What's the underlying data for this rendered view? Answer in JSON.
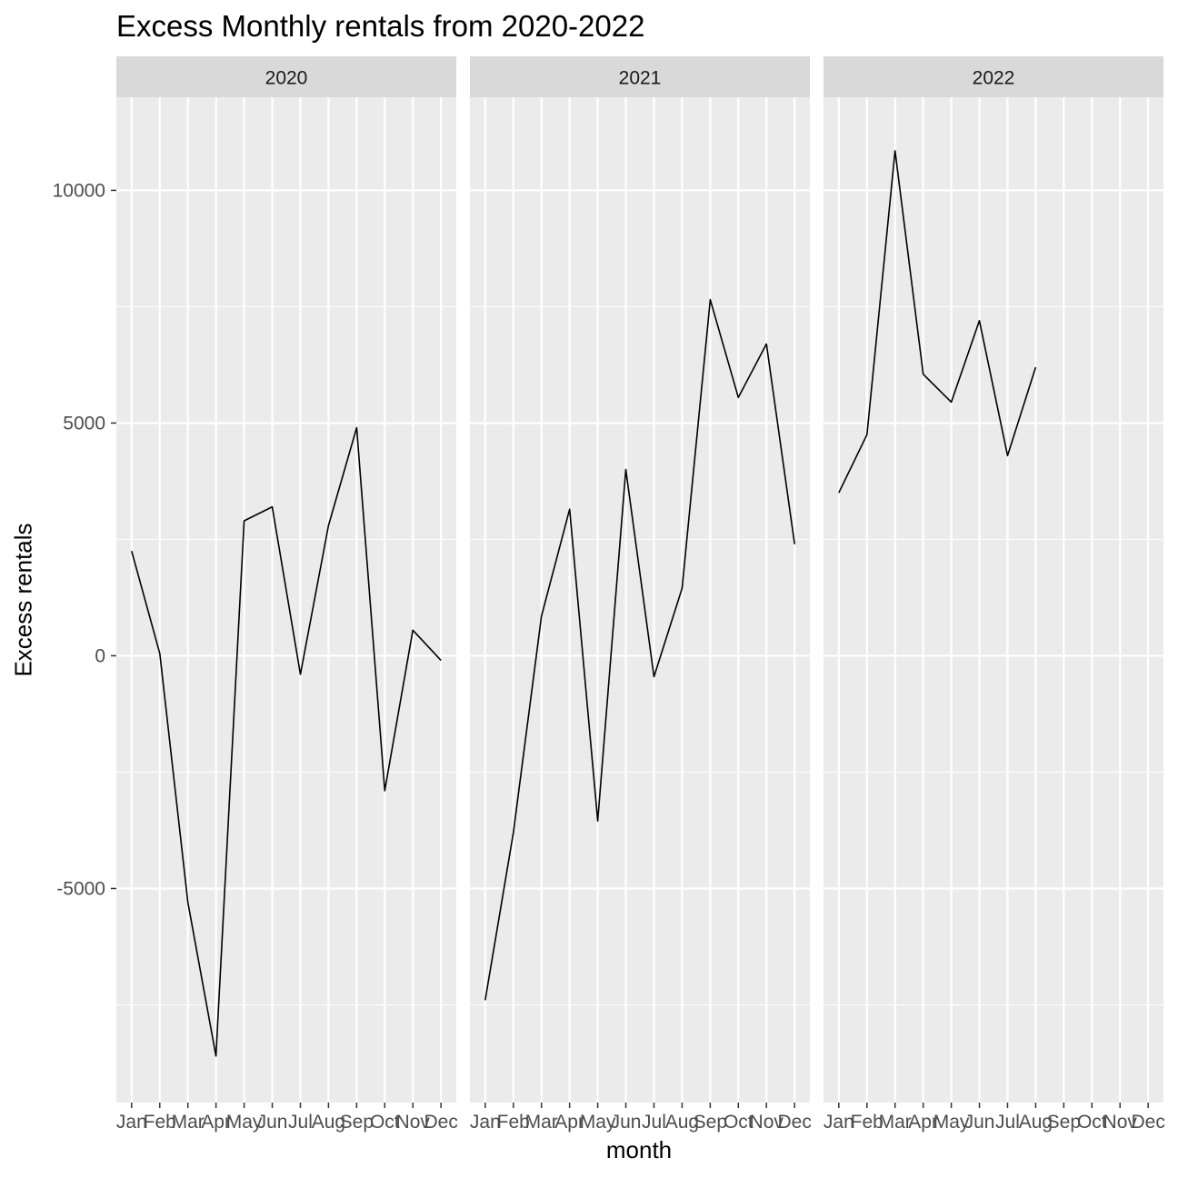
{
  "chart_data": {
    "type": "line",
    "title": "Excess Monthly rentals from 2020-2022",
    "xlabel": "month",
    "ylabel": "Excess rentals",
    "categories": [
      "Jan",
      "Feb",
      "Mar",
      "Apr",
      "May",
      "Jun",
      "Jul",
      "Aug",
      "Sep",
      "Oct",
      "Nov",
      "Dec"
    ],
    "ylim": [
      -9600,
      12000
    ],
    "yticks": [
      -5000,
      0,
      5000,
      10000
    ],
    "ytick_labels": [
      "-5000",
      "0",
      "5000",
      "10000"
    ],
    "grid": true,
    "facets": [
      {
        "label": "2020",
        "values": [
          2250,
          50,
          -5300,
          -8600,
          2900,
          3200,
          -400,
          2800,
          4900,
          -2900,
          550,
          -100
        ]
      },
      {
        "label": "2021",
        "values": [
          -7400,
          -3800,
          850,
          3150,
          -3550,
          4000,
          -450,
          1450,
          7650,
          5550,
          6700,
          2400
        ]
      },
      {
        "label": "2022",
        "values": [
          3500,
          4750,
          10850,
          6050,
          5450,
          7200,
          4300,
          6200,
          null,
          null,
          null,
          null
        ]
      }
    ],
    "colors": {
      "panel_bg": "#ebebeb",
      "strip_bg": "#d9d9d9",
      "grid": "#ffffff",
      "line": "#000000",
      "tick_text": "#4d4d4d"
    }
  }
}
